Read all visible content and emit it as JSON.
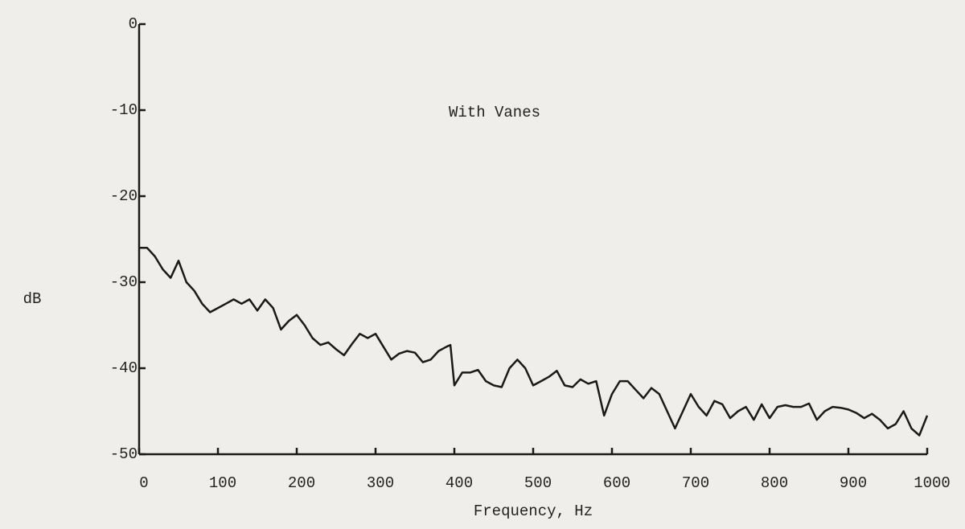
{
  "chart_data": {
    "type": "line",
    "annotation": "With Vanes",
    "xlabel": "Frequency, Hz",
    "ylabel": "dB",
    "xlim": [
      0,
      1000
    ],
    "ylim": [
      -50,
      0
    ],
    "xticks": [
      0,
      100,
      200,
      300,
      400,
      500,
      600,
      700,
      800,
      900,
      1000
    ],
    "yticks": [
      0,
      -10,
      -20,
      -30,
      -40,
      -50
    ],
    "color": "#1a1a1a",
    "x": [
      0,
      10,
      20,
      30,
      40,
      50,
      60,
      70,
      80,
      90,
      100,
      110,
      120,
      130,
      140,
      150,
      160,
      170,
      180,
      190,
      200,
      210,
      220,
      230,
      240,
      250,
      260,
      270,
      280,
      290,
      300,
      310,
      320,
      330,
      340,
      350,
      360,
      370,
      380,
      390,
      395,
      400,
      410,
      420,
      430,
      440,
      450,
      460,
      470,
      480,
      490,
      500,
      510,
      520,
      530,
      540,
      550,
      560,
      570,
      580,
      590,
      600,
      610,
      620,
      630,
      640,
      650,
      660,
      670,
      680,
      690,
      700,
      710,
      720,
      730,
      740,
      750,
      760,
      770,
      780,
      790,
      800,
      810,
      820,
      830,
      840,
      850,
      860,
      870,
      880,
      890,
      900,
      910,
      920,
      930,
      940,
      950,
      960,
      970,
      980,
      990,
      1000
    ],
    "values": [
      -26,
      -26,
      -27,
      -28.5,
      -29.5,
      -27.5,
      -30,
      -31,
      -32.5,
      -33.5,
      -33,
      -32.5,
      -32,
      -32.5,
      -32,
      -33.3,
      -32,
      -33,
      -35.5,
      -34.5,
      -33.8,
      -35,
      -36.5,
      -37.3,
      -37,
      -37.8,
      -38.5,
      -37.2,
      -36,
      -36.5,
      -36,
      -37.5,
      -39,
      -38.3,
      -38,
      -38.2,
      -39.3,
      -39,
      -38,
      -37.5,
      -37.3,
      -42,
      -40.5,
      -40.5,
      -40.2,
      -41.5,
      -42,
      -42.2,
      -40,
      -39,
      -40,
      -42,
      -41.5,
      -41,
      -40.3,
      -42,
      -42.2,
      -41.3,
      -41.8,
      -41.5,
      -45.5,
      -43,
      -41.5,
      -41.5,
      -42.5,
      -43.5,
      -42.3,
      -43,
      -45,
      -47,
      -45,
      -43,
      -44.5,
      -45.5,
      -43.8,
      -44.2,
      -45.8,
      -45,
      -44.5,
      -46,
      -44.2,
      -45.8,
      -44.5,
      -44.3,
      -44.5,
      -44.5,
      -44.1,
      -46,
      -45,
      -44.5,
      -44.6,
      -44.8,
      -45.2,
      -45.8,
      -45.3,
      -46,
      -47,
      -46.5,
      -45,
      -47,
      -47.8,
      -45.5
    ]
  }
}
